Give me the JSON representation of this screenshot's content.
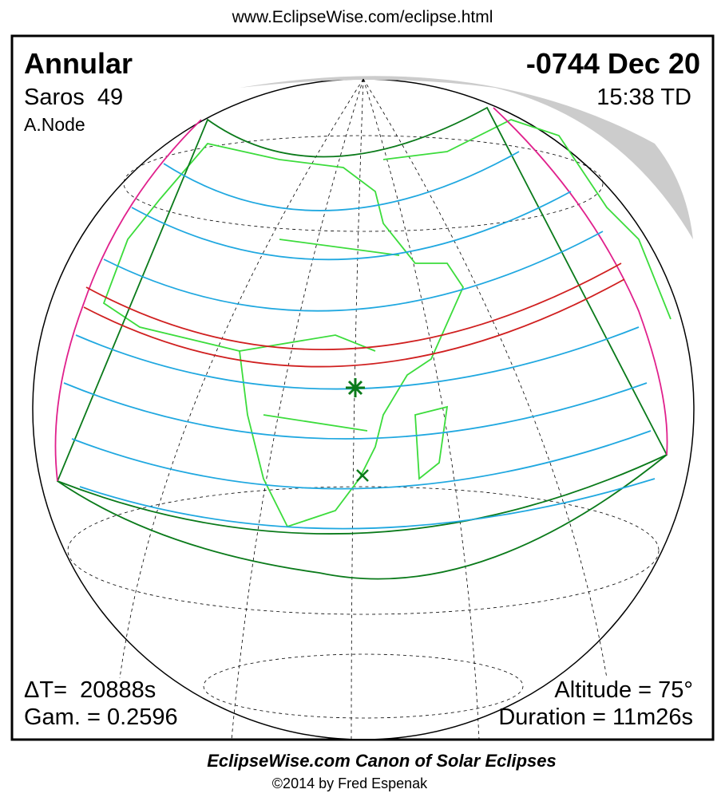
{
  "header": {
    "url": "www.EclipseWise.com/eclipse.html"
  },
  "eclipse": {
    "type": "Annular",
    "saros": "Saros  49",
    "node": "A.Node",
    "date": "-0744 Dec 20",
    "time": "15:38 TD",
    "delta_t": "ΔT=  20888s",
    "gamma": "Gam. = 0.2596",
    "altitude": "Altitude = 75°",
    "duration": "Duration = 11m26s"
  },
  "footer": {
    "title": "EclipseWise.com Canon of Solar Eclipses",
    "copyright": "©2014 by Fred Espenak"
  }
}
